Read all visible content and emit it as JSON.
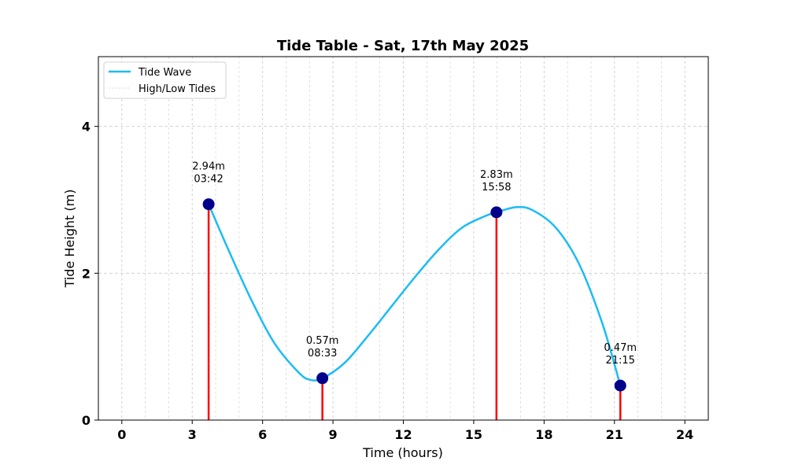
{
  "chart_data": {
    "type": "line",
    "title": "Tide Table - Sat, 17th May 2025",
    "xlabel": "Time (hours)",
    "ylabel": "Tide Height (m)",
    "xlim": [
      -1,
      25
    ],
    "ylim": [
      0,
      4.95
    ],
    "xticks": [
      0,
      3,
      6,
      9,
      12,
      15,
      18,
      21,
      24
    ],
    "yticks": [
      0,
      2,
      4
    ],
    "grid": true,
    "legend_position": "top-left",
    "colors": {
      "wave": "#1bbcf5",
      "stem": "#ff0000",
      "marker": "#00008b",
      "grid": "#cccccc"
    },
    "legend": [
      {
        "label": "Tide Wave"
      },
      {
        "label": "High/Low Tides"
      }
    ],
    "tides": [
      {
        "x": 3.7,
        "y": 2.94,
        "height_label": "2.94m",
        "time_label": "03:42"
      },
      {
        "x": 8.55,
        "y": 0.57,
        "height_label": "0.57m",
        "time_label": "08:33"
      },
      {
        "x": 15.97,
        "y": 2.83,
        "height_label": "2.83m",
        "time_label": "15:58"
      },
      {
        "x": 21.25,
        "y": 0.47,
        "height_label": "0.47m",
        "time_label": "21:15"
      }
    ],
    "series": [
      {
        "name": "Tide Wave",
        "x": [
          3.7,
          4.5,
          5.5,
          6.5,
          7.5,
          8.0,
          8.55,
          9.5,
          10.5,
          11.5,
          12.5,
          13.5,
          14.5,
          15.5,
          15.97,
          16.8,
          17.5,
          18.5,
          19.5,
          20.5,
          21.25
        ],
        "y": [
          2.94,
          2.35,
          1.65,
          1.05,
          0.66,
          0.55,
          0.57,
          0.78,
          1.15,
          1.55,
          1.95,
          2.32,
          2.62,
          2.78,
          2.83,
          2.9,
          2.86,
          2.62,
          2.12,
          1.3,
          0.47
        ]
      }
    ]
  }
}
